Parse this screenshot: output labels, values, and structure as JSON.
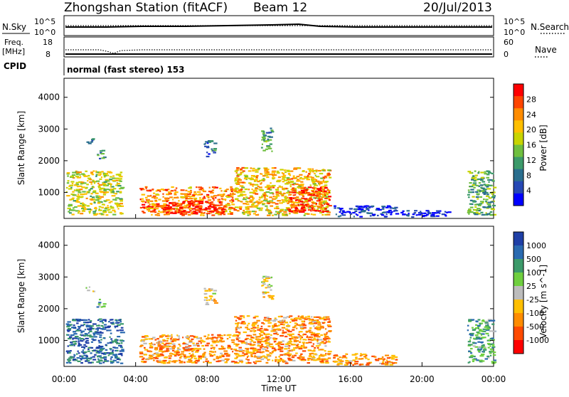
{
  "header": {
    "title": "Zhongshan Station (fitACF)",
    "beam": "Beam 12",
    "date": "20/Jul/2013"
  },
  "top_panels": {
    "nsky_label": "N.Sky",
    "nsearch_label": "N.Search",
    "nsky_ticks": [
      "10^5",
      "10^0"
    ],
    "nsearch_ticks": [
      "10^5",
      "10^0"
    ],
    "freq_label": "Freq.",
    "freq_unit": "[MHz]",
    "freq_ticks": [
      "18",
      "8"
    ],
    "nave_label": "Nave",
    "nave_ticks": [
      "60",
      "0"
    ],
    "cpid_label": "CPID",
    "cpid_value": "normal (fast stereo) 153"
  },
  "x_axis": {
    "label": "Time UT",
    "ticks": [
      "00:00",
      "04:00",
      "08:00",
      "12:00",
      "16:00",
      "20:00",
      "00:00"
    ]
  },
  "chart_data": [
    {
      "type": "heatmap",
      "name": "power",
      "ylabel": "Slant Range [km]",
      "yticks": [
        1000,
        2000,
        3000,
        4000
      ],
      "ylim": [
        180,
        4600
      ],
      "xlim": [
        0,
        24
      ],
      "colorbar": {
        "label": "Power [dB]",
        "ticks": [
          "28",
          "24",
          "20",
          "16",
          "12",
          "8",
          "4"
        ],
        "colors": [
          "#ff0000",
          "#ff4500",
          "#ff8c00",
          "#ffbf00",
          "#c8d400",
          "#6fbf3f",
          "#3c9a6a",
          "#2a6e8e",
          "#2648b4",
          "#0000ff"
        ]
      },
      "regions": [
        {
          "t0": 0.1,
          "t1": 3.2,
          "r0": 300,
          "r1": 1700,
          "level": 0.55
        },
        {
          "t0": 1.2,
          "t1": 1.6,
          "r0": 2550,
          "r1": 2750,
          "level": 0.2
        },
        {
          "t0": 1.8,
          "t1": 2.2,
          "r0": 2050,
          "r1": 2350,
          "level": 0.3
        },
        {
          "t0": 4.2,
          "t1": 9.5,
          "r0": 300,
          "r1": 1200,
          "level": 0.75
        },
        {
          "t0": 5.5,
          "t1": 9.0,
          "r0": 350,
          "r1": 750,
          "level": 0.95
        },
        {
          "t0": 9.5,
          "t1": 14.8,
          "r0": 300,
          "r1": 1800,
          "level": 0.65
        },
        {
          "t0": 12.5,
          "t1": 14.8,
          "r0": 400,
          "r1": 1200,
          "level": 0.9
        },
        {
          "t0": 7.8,
          "t1": 8.4,
          "r0": 2150,
          "r1": 2700,
          "level": 0.25
        },
        {
          "t0": 11.0,
          "t1": 11.6,
          "r0": 2300,
          "r1": 3050,
          "level": 0.35
        },
        {
          "t0": 15.0,
          "t1": 18.5,
          "r0": 250,
          "r1": 600,
          "level": 0.1
        },
        {
          "t0": 18.5,
          "t1": 21.5,
          "r0": 250,
          "r1": 450,
          "level": 0.05
        },
        {
          "t0": 22.5,
          "t1": 24.0,
          "r0": 300,
          "r1": 1700,
          "level": 0.4
        }
      ]
    },
    {
      "type": "heatmap",
      "name": "velocity",
      "ylabel": "Slant Range [km]",
      "yticks": [
        1000,
        2000,
        3000,
        4000
      ],
      "ylim": [
        180,
        4600
      ],
      "xlim": [
        0,
        24
      ],
      "colorbar": {
        "label": "Velocity [m s^-1]",
        "ticks": [
          "1000",
          "500",
          "100",
          "25",
          "-25",
          "-100",
          "-500",
          "-1000"
        ],
        "colors": [
          "#1f3fa6",
          "#2a6ab0",
          "#3c9a6a",
          "#6fcf3f",
          "#bcbcbc",
          "#ffbf00",
          "#ff8c00",
          "#ff4a00",
          "#ff0000"
        ]
      },
      "regions": [
        {
          "t0": 0.1,
          "t1": 3.2,
          "r0": 300,
          "r1": 1700,
          "level": 0.85
        },
        {
          "t0": 1.2,
          "t1": 1.6,
          "r0": 2550,
          "r1": 2750,
          "level": 0.5
        },
        {
          "t0": 1.8,
          "t1": 2.2,
          "r0": 2050,
          "r1": 2350,
          "level": 0.65
        },
        {
          "t0": 4.2,
          "t1": 9.5,
          "r0": 300,
          "r1": 1200,
          "level": 0.3
        },
        {
          "t0": 9.5,
          "t1": 14.8,
          "r0": 300,
          "r1": 1800,
          "level": 0.3
        },
        {
          "t0": 7.8,
          "t1": 8.4,
          "r0": 2150,
          "r1": 2700,
          "level": 0.45
        },
        {
          "t0": 11.0,
          "t1": 11.6,
          "r0": 2300,
          "r1": 3050,
          "level": 0.45
        },
        {
          "t0": 15.0,
          "t1": 18.5,
          "r0": 250,
          "r1": 600,
          "level": 0.3
        },
        {
          "t0": 22.5,
          "t1": 24.0,
          "r0": 300,
          "r1": 1700,
          "level": 0.7
        }
      ]
    }
  ]
}
